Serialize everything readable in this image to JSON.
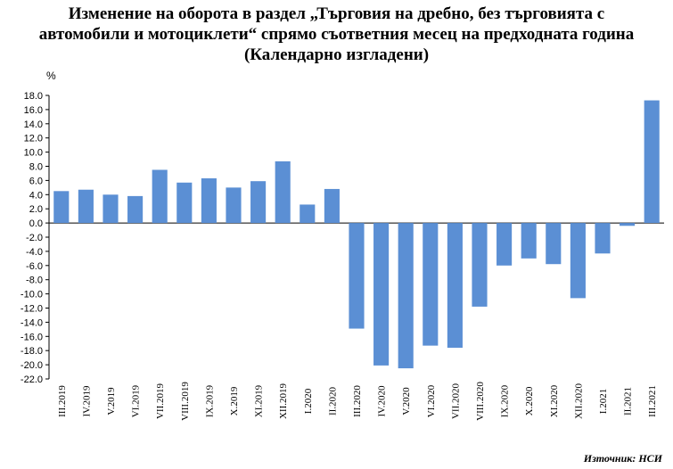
{
  "chart_data": {
    "type": "bar",
    "title_lines": [
      "Изменение на оборота в раздел „Търговия на дребно, без търговията с",
      "автомобили и мотоциклети“ спрямо съответния месец на предходната година",
      "(Календарно изгладени)"
    ],
    "ylabel": "%",
    "ylim": [
      -22,
      18
    ],
    "yticks": [
      "18.0",
      "16.0",
      "14.0",
      "12.0",
      "10.0",
      "8.0",
      "6.0",
      "4.0",
      "2.0",
      "0.0",
      "-2.0",
      "-4.0",
      "-6.0",
      "-8.0",
      "-10.0",
      "-12.0",
      "-14.0",
      "-16.0",
      "-18.0",
      "-20.0",
      "-22.0"
    ],
    "categories": [
      "III.2019",
      "IV.2019",
      "V.2019",
      "VI.2019",
      "VII.2019",
      "VIII.2019",
      "IX.2019",
      "X.2019",
      "XI.2019",
      "XII.2019",
      "I.2020",
      "II.2020",
      "III.2020",
      "IV.2020",
      "V.2020",
      "VI.2020",
      "VII.2020",
      "VIII.2020",
      "IX.2020",
      "X.2020",
      "XI.2020",
      "XII.2020",
      "I.2021",
      "II.2021",
      "III.2021"
    ],
    "values": [
      4.5,
      4.7,
      4.0,
      3.8,
      7.5,
      5.7,
      6.3,
      5.0,
      5.9,
      8.7,
      2.6,
      4.8,
      -14.9,
      -20.1,
      -20.5,
      -17.3,
      -17.6,
      -11.8,
      -6.0,
      -5.0,
      -5.8,
      -10.6,
      -4.3,
      -0.4,
      17.3
    ],
    "bar_color": "#5B8FD4",
    "grid": false,
    "legend": "none"
  },
  "source": "Източник: НСИ"
}
